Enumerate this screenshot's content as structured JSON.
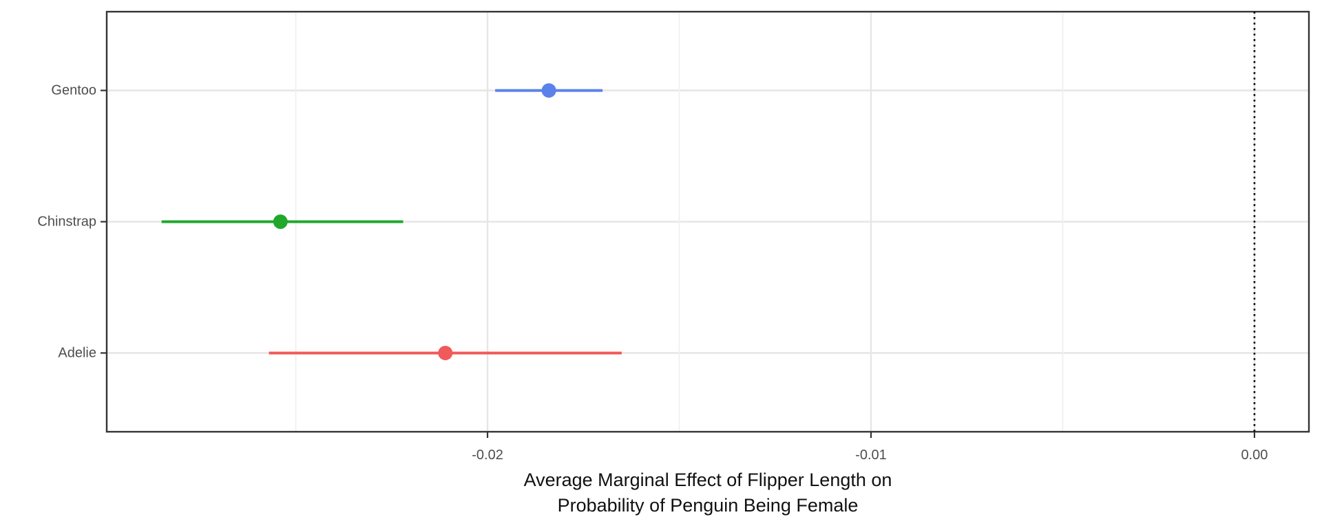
{
  "chart_data": {
    "type": "scatter",
    "subtype": "pointrange-coefficient-plot",
    "orientation": "horizontal",
    "title": "",
    "xlabel": "Average Marginal Effect of Flipper Length on Probability of Penguin Being Female",
    "xlabel_lines": [
      "Average Marginal Effect of Flipper Length on",
      "Probability of Penguin Being Female"
    ],
    "ylabel": "",
    "categories": [
      "Adelie",
      "Chinstrap",
      "Gentoo"
    ],
    "series": [
      {
        "name": "Gentoo",
        "estimate": -0.0184,
        "ci_low": -0.0198,
        "ci_high": -0.017,
        "color": "#5A82EA"
      },
      {
        "name": "Chinstrap",
        "estimate": -0.0254,
        "ci_low": -0.0285,
        "ci_high": -0.0222,
        "color": "#1FA82C"
      },
      {
        "name": "Adelie",
        "estimate": -0.0211,
        "ci_low": -0.0257,
        "ci_high": -0.0165,
        "color": "#F05A5A"
      }
    ],
    "x_ticks": [
      {
        "value": -0.02,
        "label": "-0.02"
      },
      {
        "value": -0.01,
        "label": "-0.01"
      },
      {
        "value": 0.0,
        "label": "0.00"
      }
    ],
    "x_minor_ticks": [
      -0.025,
      -0.015,
      -0.005
    ],
    "xlim": [
      -0.02993,
      0.00142
    ],
    "reference_line": {
      "value": 0.0,
      "linetype": "dotted",
      "color": "#000000"
    },
    "grid": true,
    "legend": "none",
    "style": {
      "background": "#FFFFFF",
      "panel_border": "#333333",
      "grid_major": "#E6E6E6",
      "grid_minor": "#F0F0F0",
      "axis_text": "#4D4D4D",
      "title_text": "#111111",
      "tick_mark": "#333333"
    }
  }
}
